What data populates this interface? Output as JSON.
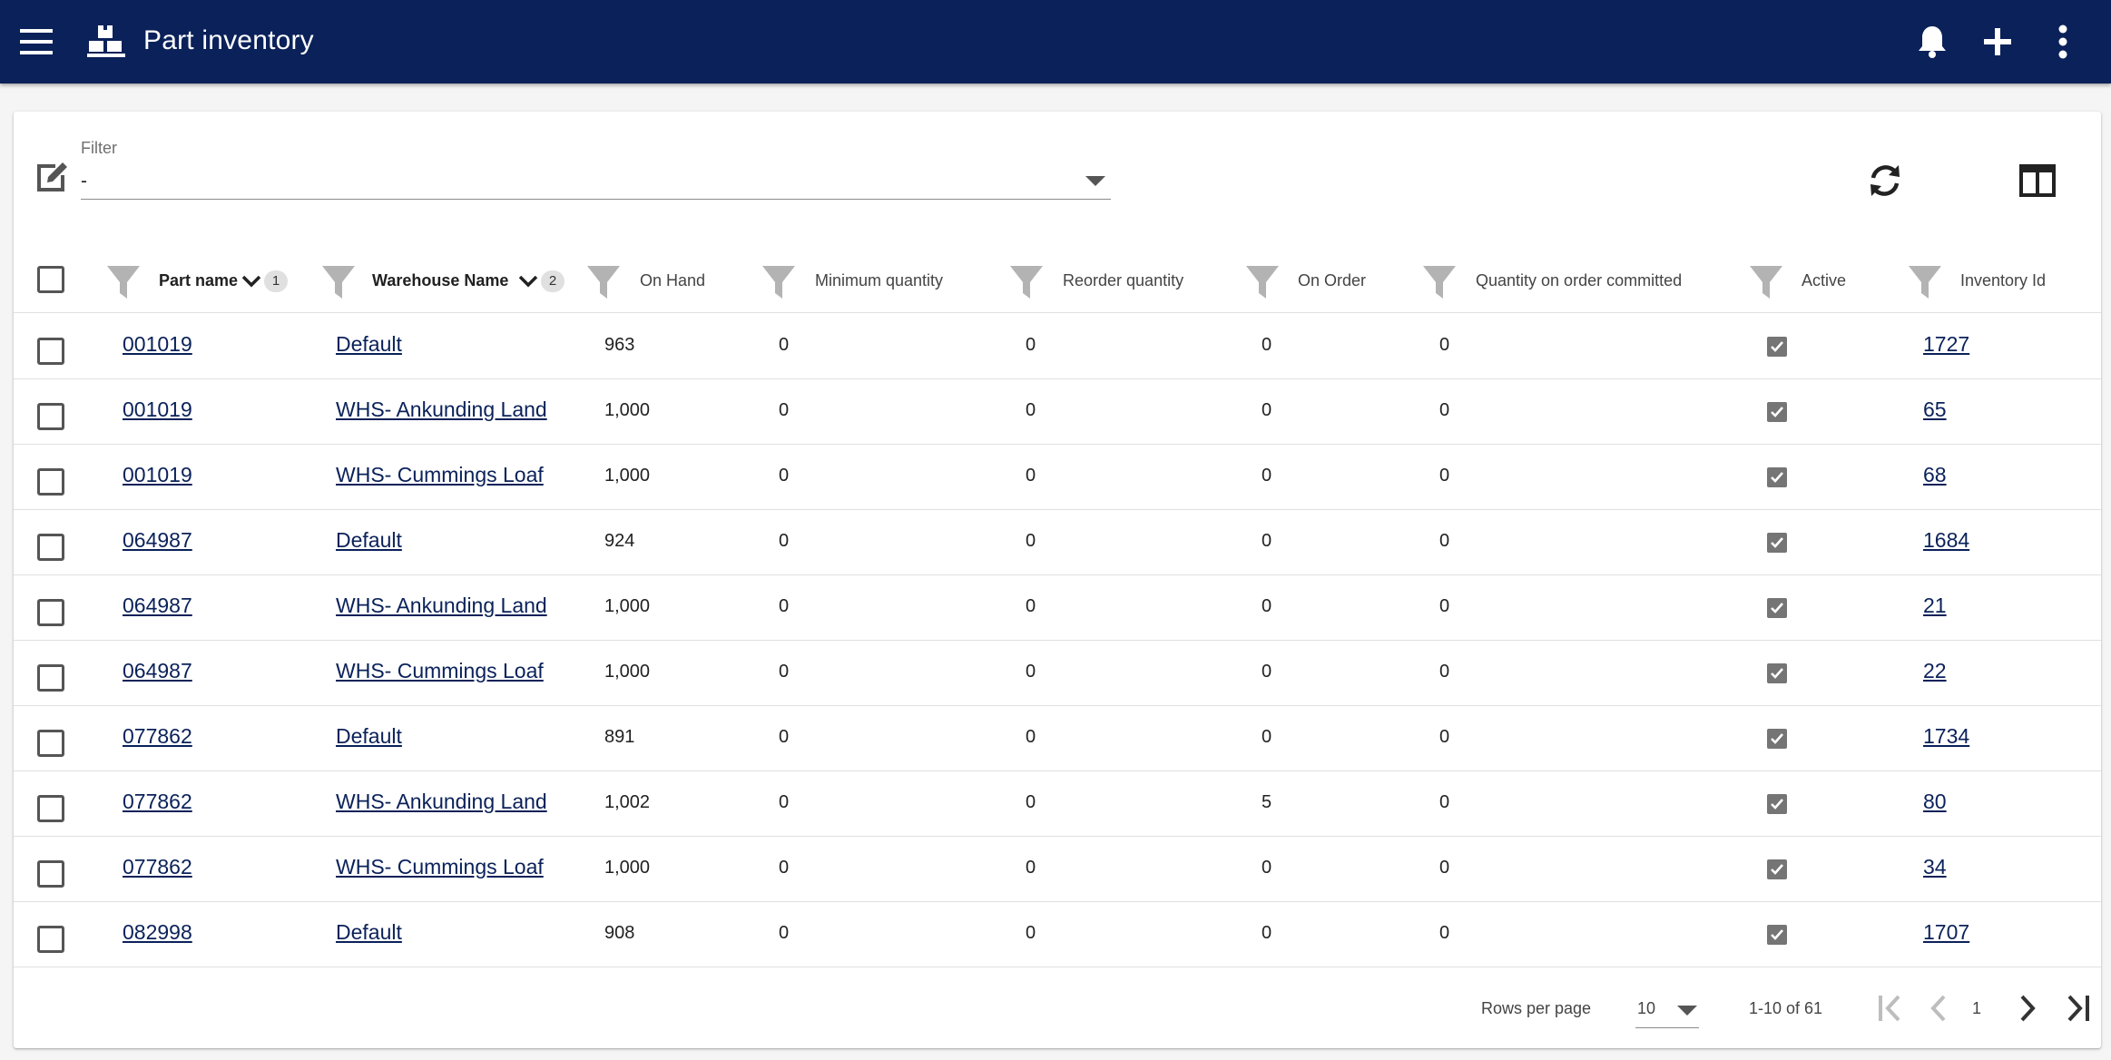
{
  "appbar": {
    "title": "Part inventory",
    "icons": [
      "menu-icon",
      "warehouse-icon",
      "bell-icon",
      "plus-icon",
      "more-vertical-icon"
    ],
    "color": "#0a2159"
  },
  "filter": {
    "label": "Filter",
    "value": "-"
  },
  "toolbar": {
    "icons": [
      "edit-icon",
      "refresh-icon",
      "columns-icon"
    ]
  },
  "table": {
    "columns": [
      {
        "key": "part_name",
        "label": "Part name",
        "sort_badge": "1"
      },
      {
        "key": "warehouse_name",
        "label": "Warehouse Name",
        "sort_badge": "2"
      },
      {
        "key": "on_hand",
        "label": "On Hand"
      },
      {
        "key": "minimum_quantity",
        "label": "Minimum quantity"
      },
      {
        "key": "reorder_quantity",
        "label": "Reorder quantity"
      },
      {
        "key": "on_order",
        "label": "On Order"
      },
      {
        "key": "qty_on_order_committed",
        "label": "Quantity on order committed"
      },
      {
        "key": "active",
        "label": "Active"
      },
      {
        "key": "inventory_id",
        "label": "Inventory Id"
      }
    ],
    "rows": [
      {
        "part_name": "001019",
        "warehouse_name": "Default",
        "on_hand": "963",
        "minimum_quantity": "0",
        "reorder_quantity": "0",
        "on_order": "0",
        "qty_on_order_committed": "0",
        "active": true,
        "inventory_id": "1727"
      },
      {
        "part_name": "001019",
        "warehouse_name": "WHS- Ankunding Land",
        "on_hand": "1,000",
        "minimum_quantity": "0",
        "reorder_quantity": "0",
        "on_order": "0",
        "qty_on_order_committed": "0",
        "active": true,
        "inventory_id": "65"
      },
      {
        "part_name": "001019",
        "warehouse_name": "WHS- Cummings Loaf",
        "on_hand": "1,000",
        "minimum_quantity": "0",
        "reorder_quantity": "0",
        "on_order": "0",
        "qty_on_order_committed": "0",
        "active": true,
        "inventory_id": "68"
      },
      {
        "part_name": "064987",
        "warehouse_name": "Default",
        "on_hand": "924",
        "minimum_quantity": "0",
        "reorder_quantity": "0",
        "on_order": "0",
        "qty_on_order_committed": "0",
        "active": true,
        "inventory_id": "1684"
      },
      {
        "part_name": "064987",
        "warehouse_name": "WHS- Ankunding Land",
        "on_hand": "1,000",
        "minimum_quantity": "0",
        "reorder_quantity": "0",
        "on_order": "0",
        "qty_on_order_committed": "0",
        "active": true,
        "inventory_id": "21"
      },
      {
        "part_name": "064987",
        "warehouse_name": "WHS- Cummings Loaf",
        "on_hand": "1,000",
        "minimum_quantity": "0",
        "reorder_quantity": "0",
        "on_order": "0",
        "qty_on_order_committed": "0",
        "active": true,
        "inventory_id": "22"
      },
      {
        "part_name": "077862",
        "warehouse_name": "Default",
        "on_hand": "891",
        "minimum_quantity": "0",
        "reorder_quantity": "0",
        "on_order": "0",
        "qty_on_order_committed": "0",
        "active": true,
        "inventory_id": "1734"
      },
      {
        "part_name": "077862",
        "warehouse_name": "WHS- Ankunding Land",
        "on_hand": "1,002",
        "minimum_quantity": "0",
        "reorder_quantity": "0",
        "on_order": "5",
        "qty_on_order_committed": "0",
        "active": true,
        "inventory_id": "80"
      },
      {
        "part_name": "077862",
        "warehouse_name": "WHS- Cummings Loaf",
        "on_hand": "1,000",
        "minimum_quantity": "0",
        "reorder_quantity": "0",
        "on_order": "0",
        "qty_on_order_committed": "0",
        "active": true,
        "inventory_id": "34"
      },
      {
        "part_name": "082998",
        "warehouse_name": "Default",
        "on_hand": "908",
        "minimum_quantity": "0",
        "reorder_quantity": "0",
        "on_order": "0",
        "qty_on_order_committed": "0",
        "active": true,
        "inventory_id": "1707"
      }
    ]
  },
  "pagination": {
    "rows_per_page_label": "Rows per page",
    "rows_per_page_value": "10",
    "range_label": "1-10 of 61",
    "current_page": "1",
    "icons": [
      "first-page-icon",
      "prev-page-icon",
      "next-page-icon",
      "last-page-icon"
    ]
  }
}
